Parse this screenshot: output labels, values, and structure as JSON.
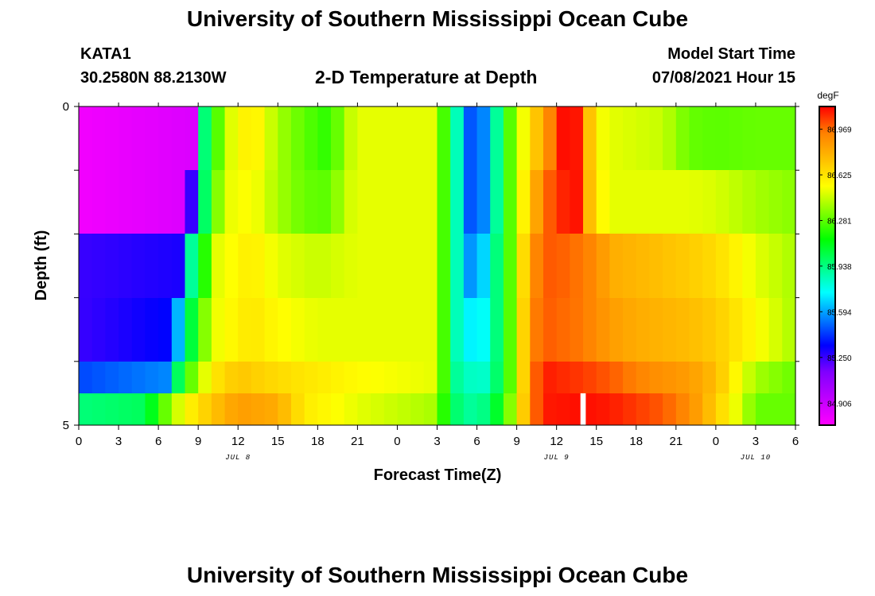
{
  "header": {
    "title": "University of Southern Mississippi Ocean Cube",
    "footer_title": "University of Southern Mississippi Ocean Cube",
    "station": "KATA1",
    "coordinates": "30.2580N  88.2130W",
    "plot_title": "2-D Temperature at Depth",
    "model_label": "Model Start Time",
    "model_time": "07/08/2021 Hour 15"
  },
  "chart_data": {
    "type": "heatmap",
    "title": "2-D Temperature at Depth",
    "xlabel": "Forecast Time(Z)",
    "ylabel": "Depth (ft)",
    "units": "degF",
    "x_ticks": [
      "0",
      "3",
      "6",
      "9",
      "12",
      "15",
      "18",
      "21",
      "0",
      "3",
      "6",
      "9",
      "12",
      "15",
      "18",
      "21",
      "0",
      "3",
      "6"
    ],
    "date_labels": [
      {
        "label": "JUL 8",
        "at_hour": 12
      },
      {
        "label": "JUL 9",
        "at_hour": 36
      },
      {
        "label": "JUL 10",
        "at_hour": 51
      }
    ],
    "y_ticks": [
      "0",
      "5"
    ],
    "ylim": [
      0,
      5
    ],
    "xlim_hours": [
      0,
      54
    ],
    "colorbar_ticks": [
      "86.969",
      "86.625",
      "86.281",
      "85.938",
      "85.594",
      "85.250",
      "84.906"
    ],
    "colorscale": [
      "#ff00ff",
      "#bf00ff",
      "#8000ff",
      "#0000ff",
      "#0080ff",
      "#00ffff",
      "#00ff80",
      "#00ff00",
      "#80ff00",
      "#ffff00",
      "#ffbf00",
      "#ff8000",
      "#ff0000"
    ],
    "value_range": [
      84.74,
      87.14
    ],
    "depth_rows": [
      {
        "depth": "0-1",
        "keyframes": [
          [
            0,
            84.78
          ],
          [
            8.5,
            84.85
          ],
          [
            9.3,
            85.9
          ],
          [
            10,
            86.1
          ],
          [
            11,
            86.45
          ],
          [
            13,
            86.62
          ],
          [
            15,
            86.4
          ],
          [
            17,
            86.28
          ],
          [
            19,
            86.2
          ],
          [
            20,
            86.4
          ],
          [
            21,
            86.5
          ],
          [
            27,
            86.5
          ],
          [
            27.5,
            86.25
          ],
          [
            28,
            86.0
          ],
          [
            28.5,
            85.85
          ],
          [
            29,
            85.55
          ],
          [
            30,
            85.4
          ],
          [
            31,
            85.7
          ],
          [
            32,
            86.1
          ],
          [
            33,
            86.45
          ],
          [
            34,
            86.6
          ],
          [
            35,
            86.85
          ],
          [
            36,
            87.0
          ],
          [
            36.5,
            87.12
          ],
          [
            38,
            87.1
          ],
          [
            38.3,
            86.8
          ],
          [
            39,
            86.55
          ],
          [
            40,
            86.5
          ],
          [
            44,
            86.45
          ],
          [
            46,
            86.3
          ],
          [
            48,
            86.28
          ],
          [
            51,
            86.3
          ],
          [
            54,
            86.3
          ]
        ]
      },
      {
        "depth": "1-2",
        "keyframes": [
          [
            0,
            84.78
          ],
          [
            8.0,
            84.85
          ],
          [
            9.3,
            85.9
          ],
          [
            10,
            86.2
          ],
          [
            11,
            86.5
          ],
          [
            13,
            86.55
          ],
          [
            15,
            86.4
          ],
          [
            17,
            86.3
          ],
          [
            19,
            86.28
          ],
          [
            20,
            86.45
          ],
          [
            21,
            86.5
          ],
          [
            27,
            86.5
          ],
          [
            27.5,
            86.25
          ],
          [
            28,
            86.0
          ],
          [
            28.5,
            85.85
          ],
          [
            29,
            85.55
          ],
          [
            30,
            85.4
          ],
          [
            31,
            85.7
          ],
          [
            32,
            86.1
          ],
          [
            33,
            86.45
          ],
          [
            34,
            86.7
          ],
          [
            35,
            86.95
          ],
          [
            36,
            87.05
          ],
          [
            37,
            87.12
          ],
          [
            38,
            87.1
          ],
          [
            38.3,
            86.8
          ],
          [
            39,
            86.6
          ],
          [
            40,
            86.5
          ],
          [
            44,
            86.5
          ],
          [
            46,
            86.5
          ],
          [
            48,
            86.48
          ],
          [
            51,
            86.4
          ],
          [
            54,
            86.35
          ]
        ]
      },
      {
        "depth": "2-3",
        "keyframes": [
          [
            0,
            85.25
          ],
          [
            7.5,
            85.3
          ],
          [
            8.5,
            85.9
          ],
          [
            9.5,
            86.2
          ],
          [
            10.5,
            86.5
          ],
          [
            13,
            86.6
          ],
          [
            15,
            86.5
          ],
          [
            18,
            86.45
          ],
          [
            21,
            86.5
          ],
          [
            27,
            86.5
          ],
          [
            27.5,
            86.25
          ],
          [
            28,
            86.0
          ],
          [
            28.5,
            85.85
          ],
          [
            29,
            85.6
          ],
          [
            30,
            85.55
          ],
          [
            31,
            85.8
          ],
          [
            32,
            86.1
          ],
          [
            33,
            86.45
          ],
          [
            34,
            86.85
          ],
          [
            35,
            87.0
          ],
          [
            36,
            87.0
          ],
          [
            38,
            86.95
          ],
          [
            39,
            86.9
          ],
          [
            40,
            86.8
          ],
          [
            43,
            86.75
          ],
          [
            46,
            86.7
          ],
          [
            48,
            86.65
          ],
          [
            51,
            86.5
          ],
          [
            54,
            86.4
          ]
        ]
      },
      {
        "depth": "3-4",
        "keyframes": [
          [
            0,
            85.25
          ],
          [
            7,
            85.35
          ],
          [
            8,
            85.9
          ],
          [
            9,
            86.2
          ],
          [
            10,
            86.5
          ],
          [
            13,
            86.62
          ],
          [
            15,
            86.55
          ],
          [
            18,
            86.5
          ],
          [
            21,
            86.5
          ],
          [
            27,
            86.5
          ],
          [
            27.5,
            86.25
          ],
          [
            28,
            86.0
          ],
          [
            28.5,
            85.85
          ],
          [
            29,
            85.75
          ],
          [
            30,
            85.7
          ],
          [
            31,
            85.8
          ],
          [
            32,
            86.1
          ],
          [
            33,
            86.45
          ],
          [
            34,
            86.9
          ],
          [
            35,
            87.0
          ],
          [
            38,
            86.95
          ],
          [
            40,
            86.85
          ],
          [
            42,
            86.8
          ],
          [
            46,
            86.75
          ],
          [
            48,
            86.7
          ],
          [
            51,
            86.55
          ],
          [
            54,
            86.4
          ]
        ]
      },
      {
        "depth": "4-4.5",
        "keyframes": [
          [
            0,
            85.45
          ],
          [
            6.5,
            85.55
          ],
          [
            7.5,
            86.0
          ],
          [
            8.5,
            86.3
          ],
          [
            10,
            86.6
          ],
          [
            12,
            86.72
          ],
          [
            15,
            86.65
          ],
          [
            18,
            86.6
          ],
          [
            21,
            86.55
          ],
          [
            27,
            86.5
          ],
          [
            27.5,
            86.25
          ],
          [
            28,
            86.0
          ],
          [
            28.5,
            85.9
          ],
          [
            30,
            85.8
          ],
          [
            31,
            85.85
          ],
          [
            32,
            86.1
          ],
          [
            33,
            86.45
          ],
          [
            34,
            86.9
          ],
          [
            35,
            87.1
          ],
          [
            38,
            87.05
          ],
          [
            40,
            87.0
          ],
          [
            43,
            86.9
          ],
          [
            46,
            86.85
          ],
          [
            48,
            86.75
          ],
          [
            50,
            86.5
          ],
          [
            51,
            86.4
          ],
          [
            54,
            86.3
          ]
        ]
      },
      {
        "depth": "4.5-5",
        "keyframes": [
          [
            0,
            85.95
          ],
          [
            5,
            86.0
          ],
          [
            6,
            86.2
          ],
          [
            7,
            86.4
          ],
          [
            8,
            86.55
          ],
          [
            10,
            86.72
          ],
          [
            12,
            86.85
          ],
          [
            15,
            86.8
          ],
          [
            17,
            86.6
          ],
          [
            21,
            86.5
          ],
          [
            27,
            86.4
          ],
          [
            27.5,
            86.2
          ],
          [
            28,
            86.0
          ],
          [
            29.5,
            85.9
          ],
          [
            31,
            85.95
          ],
          [
            32,
            86.2
          ],
          [
            33,
            86.5
          ],
          [
            34,
            86.9
          ],
          [
            35,
            87.1
          ],
          [
            38,
            87.12
          ],
          [
            40,
            87.1
          ],
          [
            44,
            87.0
          ],
          [
            46,
            86.9
          ],
          [
            48,
            86.7
          ],
          [
            50,
            86.45
          ],
          [
            51,
            86.3
          ],
          [
            54,
            86.3
          ]
        ]
      }
    ],
    "missing_cells": [
      {
        "row": "4.5-5",
        "hour_start": 37.8,
        "hour_end": 38.2
      }
    ]
  }
}
